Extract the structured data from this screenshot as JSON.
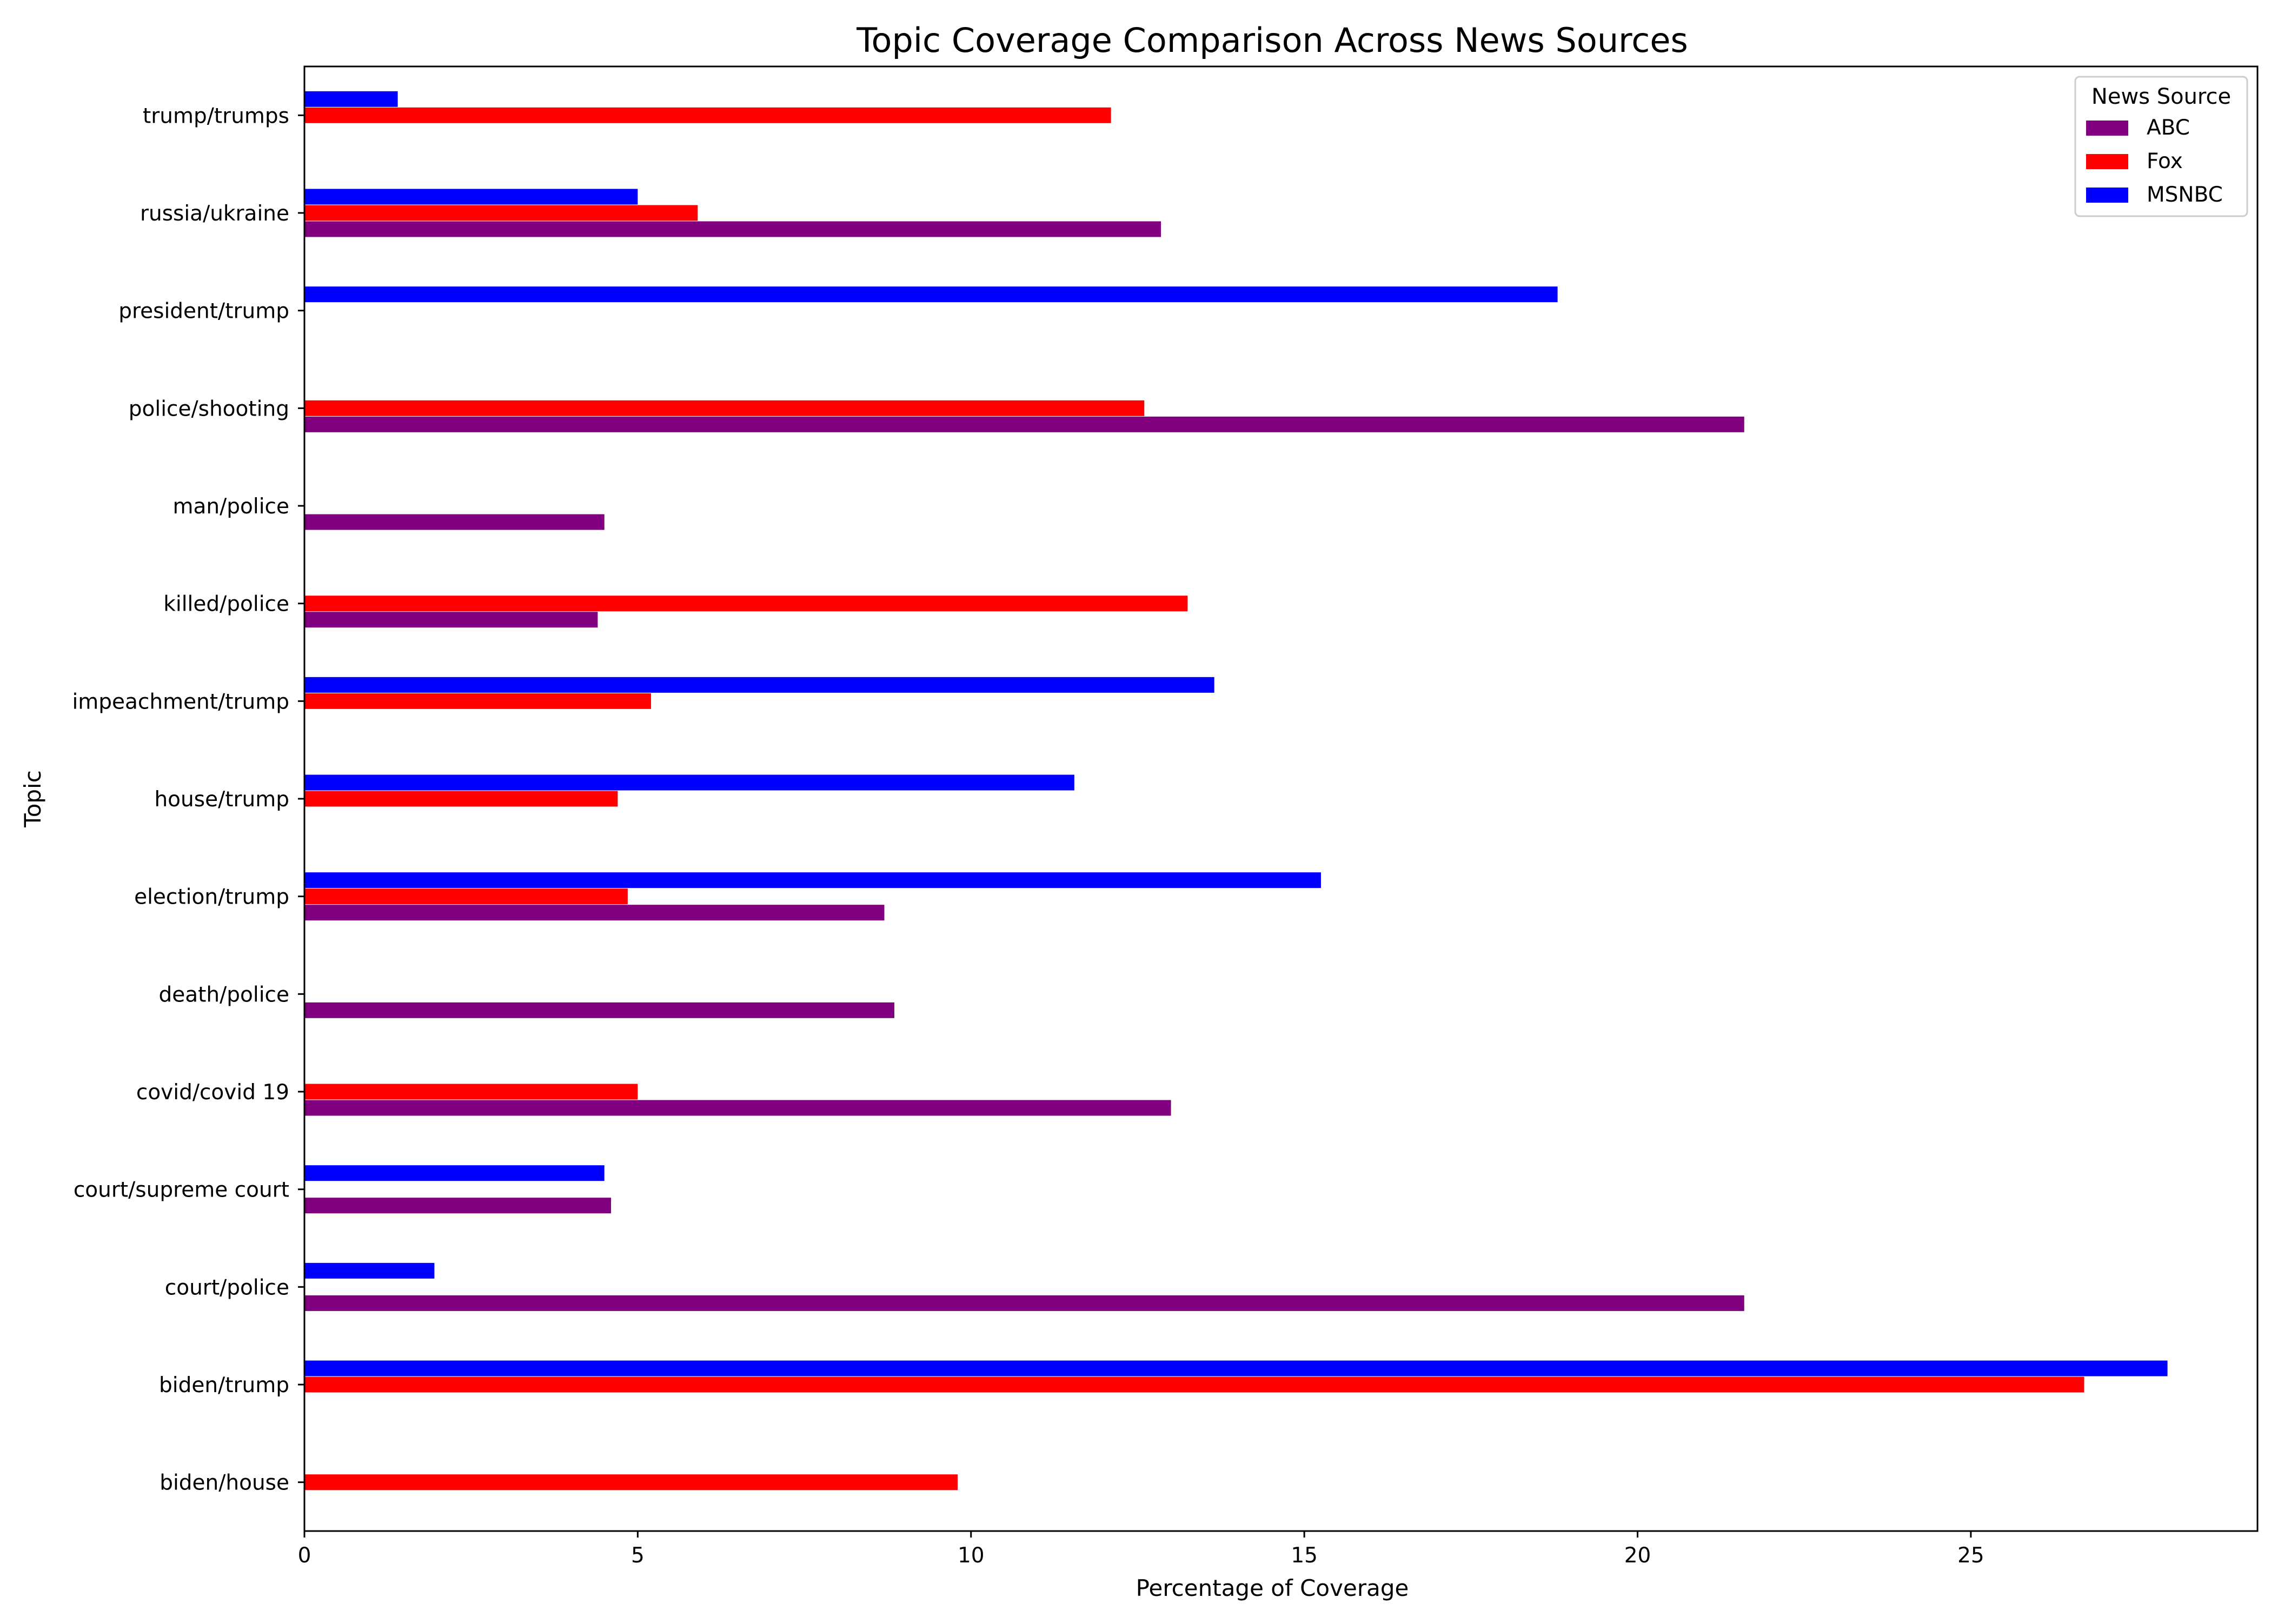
{
  "chart_data": {
    "type": "bar",
    "orientation": "horizontal",
    "title": "Topic Coverage Comparison Across News Sources",
    "xlabel": "Percentage of Coverage",
    "ylabel": "Topic",
    "xlim": [
      0,
      29.3
    ],
    "xticks": [
      0,
      5,
      10,
      15,
      20,
      25
    ],
    "grid": false,
    "legend": {
      "title": "News Source",
      "position": "top-right"
    },
    "categories": [
      "biden/house",
      "biden/trump",
      "court/police",
      "court/supreme court",
      "covid/covid 19",
      "death/police",
      "election/trump",
      "house/trump",
      "impeachment/trump",
      "killed/police",
      "man/police",
      "police/shooting",
      "president/trump",
      "russia/ukraine",
      "trump/trumps"
    ],
    "series": [
      {
        "name": "ABC",
        "color": "#800080",
        "values": [
          0,
          0,
          21.6,
          4.6,
          13.0,
          8.85,
          8.7,
          0,
          0,
          4.4,
          4.5,
          21.6,
          0,
          12.85,
          0
        ]
      },
      {
        "name": "Fox",
        "color": "#ff0000",
        "values": [
          9.8,
          26.7,
          0,
          0,
          5.0,
          0,
          4.85,
          4.7,
          5.2,
          13.25,
          0,
          12.6,
          0,
          5.9,
          12.1
        ]
      },
      {
        "name": "MSNBC",
        "color": "#0000ff",
        "values": [
          0,
          27.95,
          1.95,
          4.5,
          0,
          0,
          15.25,
          11.55,
          13.65,
          0,
          0,
          0,
          18.8,
          5.0,
          1.4
        ]
      }
    ]
  }
}
